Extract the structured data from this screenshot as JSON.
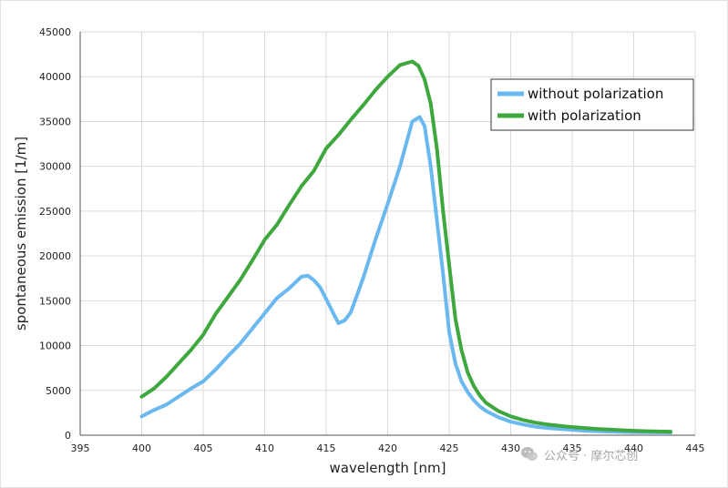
{
  "chart_data": {
    "type": "line",
    "xlabel": "wavelength [nm]",
    "ylabel": "spontaneous emission [1/m]",
    "xlim": [
      395,
      445
    ],
    "ylim": [
      0,
      45000
    ],
    "xticks": [
      395,
      400,
      405,
      410,
      415,
      420,
      425,
      430,
      435,
      440,
      445
    ],
    "yticks": [
      0,
      5000,
      10000,
      15000,
      20000,
      25000,
      30000,
      35000,
      40000,
      45000
    ],
    "grid": true,
    "legend_position": "top-right",
    "series": [
      {
        "name": "without polarization",
        "color": "#6ab8f0",
        "x": [
          400,
          401,
          402,
          403,
          404,
          405,
          406,
          407,
          408,
          409,
          410,
          411,
          412,
          413,
          413.5,
          414,
          414.5,
          415,
          415.5,
          416,
          416.5,
          417,
          418,
          419,
          420,
          421,
          422,
          422.6,
          423,
          423.5,
          424,
          424.5,
          425,
          425.5,
          426,
          426.5,
          427,
          427.5,
          428,
          429,
          430,
          431,
          432,
          433,
          434,
          435,
          436,
          437,
          438,
          439,
          440,
          441,
          442,
          443
        ],
        "y": [
          2100,
          2800,
          3400,
          4300,
          5200,
          6000,
          7300,
          8800,
          10200,
          11900,
          13600,
          15300,
          16400,
          17700,
          17800,
          17300,
          16500,
          15200,
          13800,
          12500,
          12800,
          13700,
          17500,
          21800,
          25800,
          30000,
          35000,
          35500,
          34500,
          30000,
          24000,
          18000,
          11500,
          8000,
          6000,
          4800,
          3900,
          3200,
          2700,
          2000,
          1500,
          1200,
          950,
          800,
          700,
          600,
          500,
          450,
          400,
          370,
          350,
          330,
          310,
          300
        ]
      },
      {
        "name": "with polarization",
        "color": "#3ea73e",
        "x": [
          400,
          401,
          402,
          403,
          404,
          405,
          406,
          407,
          408,
          409,
          410,
          411,
          412,
          413,
          414,
          415,
          416,
          417,
          418,
          419,
          420,
          421,
          422,
          422.5,
          423,
          423.5,
          424,
          424.5,
          425,
          425.5,
          426,
          426.5,
          427,
          427.5,
          428,
          429,
          430,
          431,
          432,
          433,
          434,
          435,
          436,
          437,
          438,
          439,
          440,
          441,
          442,
          443
        ],
        "y": [
          4300,
          5200,
          6500,
          8000,
          9500,
          11200,
          13500,
          15400,
          17300,
          19500,
          21800,
          23500,
          25700,
          27800,
          29500,
          32000,
          33500,
          35200,
          36800,
          38500,
          40000,
          41300,
          41700,
          41200,
          39700,
          37000,
          32000,
          25000,
          19000,
          13000,
          9500,
          7000,
          5500,
          4400,
          3600,
          2700,
          2100,
          1700,
          1400,
          1200,
          1050,
          900,
          800,
          700,
          630,
          560,
          500,
          450,
          420,
          400
        ]
      }
    ]
  },
  "watermark": "公众号 · 摩尔芯创"
}
